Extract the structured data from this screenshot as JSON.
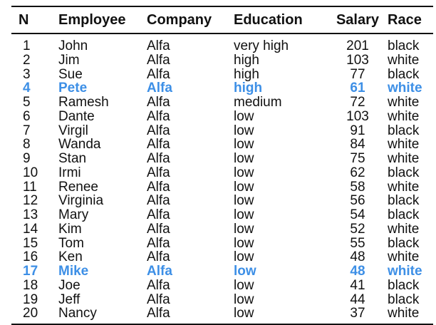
{
  "table": {
    "headers": {
      "n": "N",
      "employee": "Employee",
      "company": "Company",
      "education": "Education",
      "salary": "Salary",
      "race": "Race"
    },
    "highlight_color": "#3d8fe6",
    "rows": [
      {
        "n": "1",
        "employee": "John",
        "company": "Alfa",
        "education": "very high",
        "salary": "201",
        "race": "black",
        "highlighted": false
      },
      {
        "n": "2",
        "employee": "Jim",
        "company": "Alfa",
        "education": "high",
        "salary": "103",
        "race": "white",
        "highlighted": false
      },
      {
        "n": "3",
        "employee": "Sue",
        "company": "Alfa",
        "education": "high",
        "salary": "77",
        "race": "black",
        "highlighted": false
      },
      {
        "n": "4",
        "employee": "Pete",
        "company": "Alfa",
        "education": "high",
        "salary": "61",
        "race": "white",
        "highlighted": true
      },
      {
        "n": "5",
        "employee": "Ramesh",
        "company": "Alfa",
        "education": "medium",
        "salary": "72",
        "race": "white",
        "highlighted": false
      },
      {
        "n": "6",
        "employee": "Dante",
        "company": "Alfa",
        "education": "low",
        "salary": "103",
        "race": "white",
        "highlighted": false
      },
      {
        "n": "7",
        "employee": "Virgil",
        "company": "Alfa",
        "education": "low",
        "salary": "91",
        "race": "black",
        "highlighted": false
      },
      {
        "n": "8",
        "employee": "Wanda",
        "company": "Alfa",
        "education": "low",
        "salary": "84",
        "race": "white",
        "highlighted": false
      },
      {
        "n": "9",
        "employee": "Stan",
        "company": "Alfa",
        "education": "low",
        "salary": "75",
        "race": "white",
        "highlighted": false
      },
      {
        "n": "10",
        "employee": "Irmi",
        "company": "Alfa",
        "education": "low",
        "salary": "62",
        "race": "black",
        "highlighted": false
      },
      {
        "n": "11",
        "employee": "Renee",
        "company": "Alfa",
        "education": "low",
        "salary": "58",
        "race": "white",
        "highlighted": false
      },
      {
        "n": "12",
        "employee": "Virginia",
        "company": "Alfa",
        "education": "low",
        "salary": "56",
        "race": "black",
        "highlighted": false
      },
      {
        "n": "13",
        "employee": "Mary",
        "company": "Alfa",
        "education": "low",
        "salary": "54",
        "race": "black",
        "highlighted": false
      },
      {
        "n": "14",
        "employee": "Kim",
        "company": "Alfa",
        "education": "low",
        "salary": "52",
        "race": "white",
        "highlighted": false
      },
      {
        "n": "15",
        "employee": "Tom",
        "company": "Alfa",
        "education": "low",
        "salary": "55",
        "race": "black",
        "highlighted": false
      },
      {
        "n": "16",
        "employee": "Ken",
        "company": "Alfa",
        "education": "low",
        "salary": "48",
        "race": "white",
        "highlighted": false
      },
      {
        "n": "17",
        "employee": "Mike",
        "company": "Alfa",
        "education": "low",
        "salary": "48",
        "race": "white",
        "highlighted": true
      },
      {
        "n": "18",
        "employee": "Joe",
        "company": "Alfa",
        "education": "low",
        "salary": "41",
        "race": "black",
        "highlighted": false
      },
      {
        "n": "19",
        "employee": "Jeff",
        "company": "Alfa",
        "education": "low",
        "salary": "44",
        "race": "black",
        "highlighted": false
      },
      {
        "n": "20",
        "employee": "Nancy",
        "company": "Alfa",
        "education": "low",
        "salary": "37",
        "race": "white",
        "highlighted": false
      }
    ]
  }
}
